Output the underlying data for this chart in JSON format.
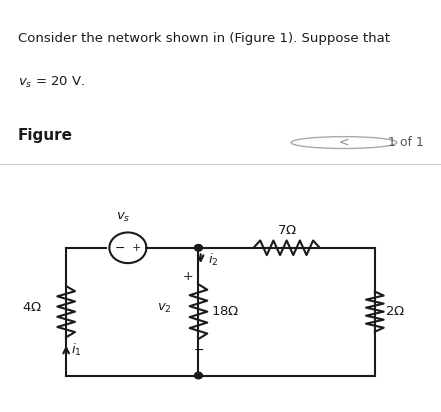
{
  "bg_color": "#e8f4f8",
  "bg_color2": "#ffffff",
  "text_header": "Consider the network shown in (Figure 1). Suppose that",
  "text_header2": "vₛ = 20 V.",
  "fig_label": "Figure",
  "fig_nav": "1 of 1",
  "label_vs": "vₛ",
  "label_i1": "i₁",
  "label_i2": "i₂",
  "label_v2": "v₂",
  "label_4ohm": "4Ω",
  "label_7ohm": "7Ω",
  "label_18ohm": "18Ω",
  "label_2ohm": "2Ω",
  "circuit_color": "#1a1a1a"
}
